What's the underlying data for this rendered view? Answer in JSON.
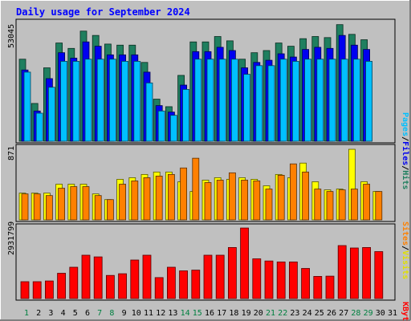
{
  "chart_data": [
    {
      "type": "bar",
      "title": "Daily usage for September 2024",
      "panel": "hits-files-pages",
      "categories": [
        "1",
        "2",
        "3",
        "4",
        "5",
        "6",
        "7",
        "8",
        "9",
        "10",
        "11",
        "12",
        "13",
        "14",
        "15",
        "16",
        "17",
        "18",
        "19",
        "20",
        "21",
        "22",
        "23",
        "24",
        "25",
        "26",
        "27",
        "28",
        "29",
        "30",
        "31"
      ],
      "y_max_label": "53045",
      "ylim": [
        0,
        55000
      ],
      "series": [
        {
          "name": "Hits",
          "color": "#1f7f5f",
          "values": [
            38000,
            17500,
            34000,
            45500,
            43000,
            51000,
            49000,
            45000,
            44500,
            44500,
            36500,
            19500,
            16000,
            30500,
            46000,
            46000,
            48500,
            46500,
            38000,
            41000,
            42000,
            45500,
            44000,
            47500,
            48500,
            48000,
            54000,
            49500,
            47000,
            null,
            null
          ]
        },
        {
          "name": "Files",
          "color": "#0000f0",
          "values": [
            33000,
            14000,
            29000,
            41000,
            38500,
            46000,
            44000,
            40000,
            40000,
            40000,
            32000,
            16500,
            13500,
            26000,
            41500,
            41500,
            43500,
            42000,
            34000,
            36500,
            37500,
            40500,
            39000,
            42500,
            43500,
            43000,
            49000,
            44500,
            42500,
            null,
            null
          ]
        },
        {
          "name": "Pages",
          "color": "#00c0ff",
          "values": [
            32000,
            13000,
            25000,
            37000,
            37000,
            38000,
            38000,
            38000,
            37000,
            37000,
            27000,
            14000,
            12000,
            24000,
            38000,
            38000,
            38000,
            38000,
            31000,
            35000,
            35000,
            38000,
            37000,
            38000,
            38000,
            38000,
            38000,
            38000,
            37000,
            null,
            null
          ]
        }
      ]
    },
    {
      "type": "bar",
      "panel": "visits-sites",
      "y_max_label": "871",
      "ylim": [
        0,
        900
      ],
      "series": [
        {
          "name": "Visits",
          "color": "#ffff00",
          "values": [
            330,
            330,
            330,
            440,
            440,
            440,
            320,
            250,
            500,
            520,
            560,
            590,
            590,
            470,
            350,
            490,
            520,
            500,
            520,
            500,
            420,
            560,
            520,
            700,
            470,
            370,
            380,
            870,
            470,
            350,
            null
          ]
        },
        {
          "name": "Sites",
          "color": "#ff8000",
          "values": [
            320,
            320,
            300,
            390,
            410,
            410,
            300,
            250,
            440,
            480,
            520,
            540,
            560,
            640,
            760,
            460,
            490,
            580,
            490,
            480,
            380,
            550,
            690,
            590,
            380,
            350,
            370,
            380,
            440,
            350,
            null
          ]
        }
      ]
    },
    {
      "type": "bar",
      "panel": "kbytes",
      "y_max_label": "2931799",
      "ylim": [
        0,
        3000000
      ],
      "series": [
        {
          "name": "KBytes",
          "color": "#ff0000",
          "values": [
            700000,
            700000,
            730000,
            1050000,
            1300000,
            1800000,
            1730000,
            960000,
            1030000,
            1600000,
            1800000,
            870000,
            1300000,
            1150000,
            1180000,
            1800000,
            1800000,
            2120000,
            2930000,
            1650000,
            1560000,
            1520000,
            1520000,
            1250000,
            920000,
            930000,
            2200000,
            2100000,
            2120000,
            1950000,
            null
          ]
        }
      ]
    }
  ],
  "labels": {
    "hits": "Hits",
    "files": "Files",
    "pages": "Pages",
    "visits": "Visits",
    "sites": "Sites",
    "kbytes": "KBytes",
    "sep": "/"
  },
  "weekend_days": [
    1,
    7,
    8,
    14,
    15,
    21,
    22,
    28,
    29
  ],
  "colors": {
    "background": "#c0c0c0",
    "title": "#0000ff",
    "weekend_label": "#008040",
    "weekday_label": "#000000"
  }
}
